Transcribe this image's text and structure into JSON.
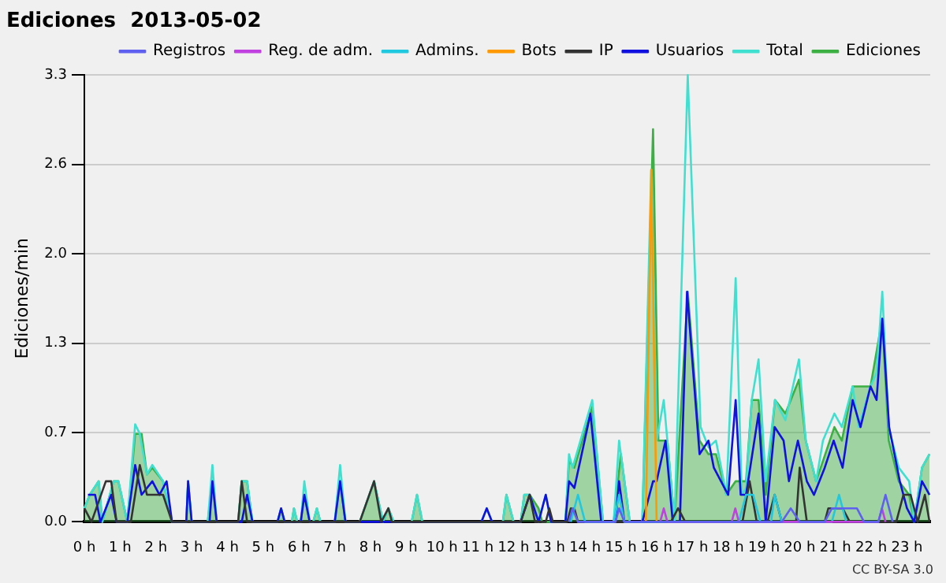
{
  "chart_data": {
    "type": "line",
    "title": "Ediciones  2013-05-02",
    "ylabel": "Ediciones/min",
    "xlim": [
      0,
      23.65
    ],
    "ylim": [
      0,
      3.3
    ],
    "yticks": [
      {
        "value": 0,
        "label": "0.0"
      },
      {
        "value": 0.66,
        "label": "0.7"
      },
      {
        "value": 1.32,
        "label": "1.3"
      },
      {
        "value": 1.98,
        "label": "2.0"
      },
      {
        "value": 2.64,
        "label": "2.6"
      },
      {
        "value": 3.3,
        "label": "3.3"
      }
    ],
    "xticks": [
      {
        "value": 0,
        "label": "0 h"
      },
      {
        "value": 1,
        "label": "1 h"
      },
      {
        "value": 2,
        "label": "2 h"
      },
      {
        "value": 3,
        "label": "3 h"
      },
      {
        "value": 4,
        "label": "4 h"
      },
      {
        "value": 5,
        "label": "5 h"
      },
      {
        "value": 6,
        "label": "6 h"
      },
      {
        "value": 7,
        "label": "7 h"
      },
      {
        "value": 8,
        "label": "8 h"
      },
      {
        "value": 9,
        "label": "9 h"
      },
      {
        "value": 10,
        "label": "10 h"
      },
      {
        "value": 11,
        "label": "11 h"
      },
      {
        "value": 12,
        "label": "12 h"
      },
      {
        "value": 13,
        "label": "13 h"
      },
      {
        "value": 14,
        "label": "14 h"
      },
      {
        "value": 15,
        "label": "15 h"
      },
      {
        "value": 16,
        "label": "16 h"
      },
      {
        "value": 17,
        "label": "17 h"
      },
      {
        "value": 18,
        "label": "18 h"
      },
      {
        "value": 19,
        "label": "19 h"
      },
      {
        "value": 20,
        "label": "20 h"
      },
      {
        "value": 21,
        "label": "21 h"
      },
      {
        "value": 22,
        "label": "22 h"
      },
      {
        "value": 23,
        "label": "23 h"
      }
    ],
    "grid": "y",
    "legend": "top right",
    "marker": "none",
    "annotations": [
      "CC BY-SA 3.0"
    ],
    "series": [
      {
        "name": "Ediciones",
        "type": "area",
        "color": "#3cb043",
        "x": [
          0,
          0.15,
          0.4,
          0.5,
          0.82,
          0.95,
          1.2,
          1.42,
          1.6,
          1.75,
          1.9,
          2.2,
          2.45,
          2.85,
          2.9,
          3.0,
          3.45,
          3.58,
          3.7,
          4.3,
          4.4,
          4.55,
          4.7,
          5.4,
          5.5,
          5.6,
          5.8,
          5.86,
          5.95,
          6.05,
          6.15,
          6.3,
          6.4,
          6.5,
          6.6,
          7.0,
          7.15,
          7.3,
          7.7,
          8.1,
          8.35,
          8.5,
          8.65,
          9.15,
          9.3,
          9.45,
          11.7,
          11.8,
          12.0,
          12.2,
          12.3,
          12.45,
          12.7,
          12.8,
          13.45,
          13.55,
          13.7,
          14.2,
          14.5,
          14.8,
          15.0,
          15.25,
          15.6,
          15.9,
          16.05,
          16.3,
          16.5,
          16.87,
          17.2,
          17.45,
          17.66,
          17.95,
          18.21,
          18.5,
          18.66,
          18.85,
          19.05,
          19.31,
          19.6,
          19.98,
          20.17,
          20.46,
          20.97,
          21.18,
          21.48,
          21.98,
          22.31,
          22.49,
          22.77,
          23.06,
          23.2,
          23.42,
          23.63
        ],
        "values": [
          0.1,
          0.2,
          0.3,
          0,
          0.3,
          0.3,
          0,
          0.65,
          0.65,
          0.35,
          0.4,
          0.3,
          0,
          0,
          0.3,
          0,
          0,
          0.3,
          0,
          0,
          0.3,
          0.3,
          0,
          0,
          0.1,
          0,
          0,
          0.1,
          0,
          0,
          0.2,
          0,
          0,
          0.1,
          0,
          0,
          0.3,
          0,
          0,
          0.3,
          0,
          0.1,
          0,
          0,
          0.2,
          0,
          0,
          0.2,
          0,
          0,
          0.2,
          0.2,
          0.1,
          0,
          0,
          0.45,
          0.4,
          0.85,
          0,
          0,
          0.5,
          0,
          0,
          2.9,
          0.6,
          0.6,
          0,
          1.7,
          0.6,
          0.5,
          0.5,
          0.2,
          0.3,
          0.3,
          0.9,
          0.9,
          0.2,
          0.9,
          0.8,
          1.05,
          0.6,
          0.3,
          0.7,
          0.6,
          1.0,
          1.0,
          1.5,
          0.6,
          0.3,
          0.2,
          0,
          0.4,
          0.5
        ]
      },
      {
        "name": "Total",
        "color": "#40e0d0",
        "x": [
          0,
          0.15,
          0.4,
          0.5,
          0.82,
          0.95,
          1.2,
          1.42,
          1.55,
          1.75,
          1.9,
          2.2,
          2.45,
          2.85,
          2.9,
          3.0,
          3.45,
          3.58,
          3.7,
          4.3,
          4.4,
          4.55,
          4.7,
          5.4,
          5.5,
          5.6,
          5.8,
          5.86,
          5.95,
          6.05,
          6.15,
          6.3,
          6.4,
          6.5,
          6.6,
          7.0,
          7.15,
          7.3,
          7.7,
          8.1,
          8.35,
          8.5,
          8.65,
          9.15,
          9.3,
          9.45,
          11.1,
          11.25,
          11.4,
          11.7,
          11.8,
          12.0,
          12.2,
          12.3,
          12.45,
          12.7,
          12.9,
          13.05,
          13.45,
          13.55,
          13.65,
          14.2,
          14.5,
          14.8,
          14.95,
          15.25,
          15.6,
          15.85,
          16.0,
          16.2,
          16.5,
          16.87,
          17.23,
          17.45,
          17.66,
          17.95,
          18.21,
          18.38,
          18.5,
          18.66,
          18.85,
          19.05,
          19.31,
          19.6,
          19.98,
          20.17,
          20.46,
          20.65,
          20.97,
          21.18,
          21.48,
          21.65,
          21.98,
          22.15,
          22.31,
          22.49,
          22.77,
          23.06,
          23.2,
          23.42,
          23.63
        ],
        "values": [
          0.1,
          0.2,
          0.3,
          0,
          0.3,
          0.3,
          0,
          0.72,
          0.65,
          0.35,
          0.42,
          0.3,
          0,
          0,
          0.3,
          0,
          0,
          0.42,
          0,
          0,
          0.3,
          0.3,
          0,
          0,
          0.1,
          0,
          0,
          0.1,
          0,
          0,
          0.3,
          0,
          0,
          0.1,
          0,
          0,
          0.42,
          0,
          0,
          0.3,
          0,
          0.1,
          0,
          0,
          0.2,
          0,
          0,
          0.1,
          0,
          0,
          0.2,
          0,
          0,
          0.2,
          0.2,
          0,
          0.2,
          0,
          0,
          0.5,
          0.4,
          0.9,
          0,
          0,
          0.6,
          0,
          0,
          2.6,
          0.6,
          0.9,
          0,
          3.3,
          0.7,
          0.55,
          0.6,
          0.2,
          1.8,
          0.2,
          0.25,
          0.9,
          1.2,
          0.3,
          0.9,
          0.75,
          1.2,
          0.6,
          0.3,
          0.6,
          0.8,
          0.7,
          1.0,
          0.7,
          1.0,
          1.1,
          1.7,
          0.7,
          0.4,
          0.3,
          0,
          0.4,
          0.5
        ]
      },
      {
        "name": "Usuarios",
        "color": "#1010e0",
        "x": [
          0.1,
          0.3,
          0.45,
          0.75,
          0.9,
          1.2,
          1.42,
          1.6,
          1.9,
          2.1,
          2.3,
          2.45,
          2.85,
          2.9,
          3.0,
          3.5,
          3.58,
          3.7,
          4.4,
          4.55,
          4.7,
          5.4,
          5.5,
          5.6,
          6.05,
          6.15,
          6.3,
          7.0,
          7.15,
          7.3,
          11.1,
          11.25,
          11.4,
          12.2,
          12.45,
          12.7,
          12.9,
          13.05,
          13.45,
          13.55,
          13.7,
          14.15,
          14.45,
          14.85,
          14.95,
          15.1,
          15.6,
          15.9,
          16.0,
          16.25,
          16.45,
          16.65,
          16.85,
          17.2,
          17.45,
          17.6,
          17.8,
          18.0,
          18.21,
          18.35,
          18.5,
          18.85,
          19.05,
          19.3,
          19.55,
          19.7,
          19.95,
          20.2,
          20.4,
          20.7,
          20.95,
          21.2,
          21.48,
          21.7,
          21.98,
          22.15,
          22.31,
          22.5,
          22.8,
          23.0,
          23.2,
          23.42,
          23.63
        ],
        "values": [
          0.2,
          0.2,
          0,
          0.2,
          0,
          0,
          0.42,
          0.2,
          0.3,
          0.2,
          0.3,
          0,
          0,
          0.3,
          0,
          0,
          0.3,
          0,
          0,
          0.2,
          0,
          0,
          0.1,
          0,
          0,
          0.2,
          0,
          0,
          0.3,
          0,
          0,
          0.1,
          0,
          0,
          0.2,
          0,
          0.2,
          0,
          0,
          0.3,
          0.25,
          0.8,
          0,
          0,
          0.3,
          0,
          0,
          0.3,
          0.3,
          0.6,
          0,
          0,
          1.7,
          0.5,
          0.6,
          0.4,
          0.3,
          0.2,
          0.9,
          0.2,
          0.2,
          0.8,
          0,
          0.7,
          0.6,
          0.3,
          0.6,
          0.3,
          0.2,
          0.4,
          0.6,
          0.4,
          0.9,
          0.7,
          1.0,
          0.9,
          1.5,
          0.7,
          0.3,
          0.1,
          0,
          0.3,
          0.2
        ]
      },
      {
        "name": "IP",
        "color": "#333333",
        "x": [
          0,
          0.2,
          0.6,
          0.75,
          0.9,
          1.3,
          1.55,
          1.75,
          2.2,
          2.45,
          4.3,
          4.4,
          4.55,
          7.7,
          8.1,
          8.3,
          8.5,
          8.6,
          12.2,
          12.45,
          12.6,
          12.9,
          13.0,
          13.1,
          13.5,
          13.6,
          13.7,
          13.8,
          16.4,
          16.6,
          16.8,
          18.4,
          18.6,
          18.8,
          19.1,
          19.3,
          19.5,
          19.9,
          20.0,
          20.2,
          20.7,
          20.8,
          21.2,
          21.4,
          22.7,
          22.9,
          23.1,
          23.3,
          23.5,
          23.63
        ],
        "values": [
          0.1,
          0,
          0.3,
          0.3,
          0,
          0,
          0.42,
          0.2,
          0.2,
          0,
          0,
          0.3,
          0,
          0,
          0.3,
          0,
          0.1,
          0,
          0,
          0.2,
          0,
          0,
          0.1,
          0,
          0,
          0.1,
          0.1,
          0,
          0,
          0.1,
          0,
          0,
          0.3,
          0,
          0,
          0.2,
          0,
          0,
          0.4,
          0,
          0,
          0.1,
          0.1,
          0,
          0,
          0.2,
          0.2,
          0,
          0.2,
          0
        ]
      },
      {
        "name": "Bots",
        "color": "#ff9900",
        "x": [
          15.7,
          15.85,
          16.0
        ],
        "values": [
          0,
          2.6,
          0
        ]
      },
      {
        "name": "Admins.",
        "color": "#20c8e0",
        "x": [
          13.6,
          13.8,
          14.0,
          14.8,
          14.95,
          15.1,
          18.3,
          18.5,
          18.7,
          18.9,
          19.2,
          19.3,
          19.5,
          20.9,
          21.1,
          21.3
        ],
        "values": [
          0,
          0.2,
          0,
          0,
          0.2,
          0,
          0,
          0.2,
          0.2,
          0,
          0,
          0.2,
          0,
          0,
          0.2,
          0
        ]
      },
      {
        "name": "Reg. de adm.",
        "color": "#c040e0",
        "x": [
          16.1,
          16.2,
          16.3,
          18.1,
          18.2,
          18.3,
          22.2,
          22.3,
          22.4
        ],
        "values": [
          0,
          0.1,
          0,
          0,
          0.1,
          0,
          0,
          0.1,
          0
        ]
      },
      {
        "name": "Registros",
        "color": "#6060f0",
        "x": [
          13.55,
          13.65,
          13.8,
          14.85,
          14.95,
          15.1,
          19.5,
          19.75,
          20.0,
          20.7,
          20.9,
          21.6,
          21.8,
          22.2,
          22.4,
          22.6
        ],
        "values": [
          0,
          0.1,
          0,
          0,
          0.1,
          0,
          0,
          0.1,
          0,
          0,
          0.1,
          0.1,
          0,
          0,
          0.2,
          0
        ]
      }
    ]
  }
}
